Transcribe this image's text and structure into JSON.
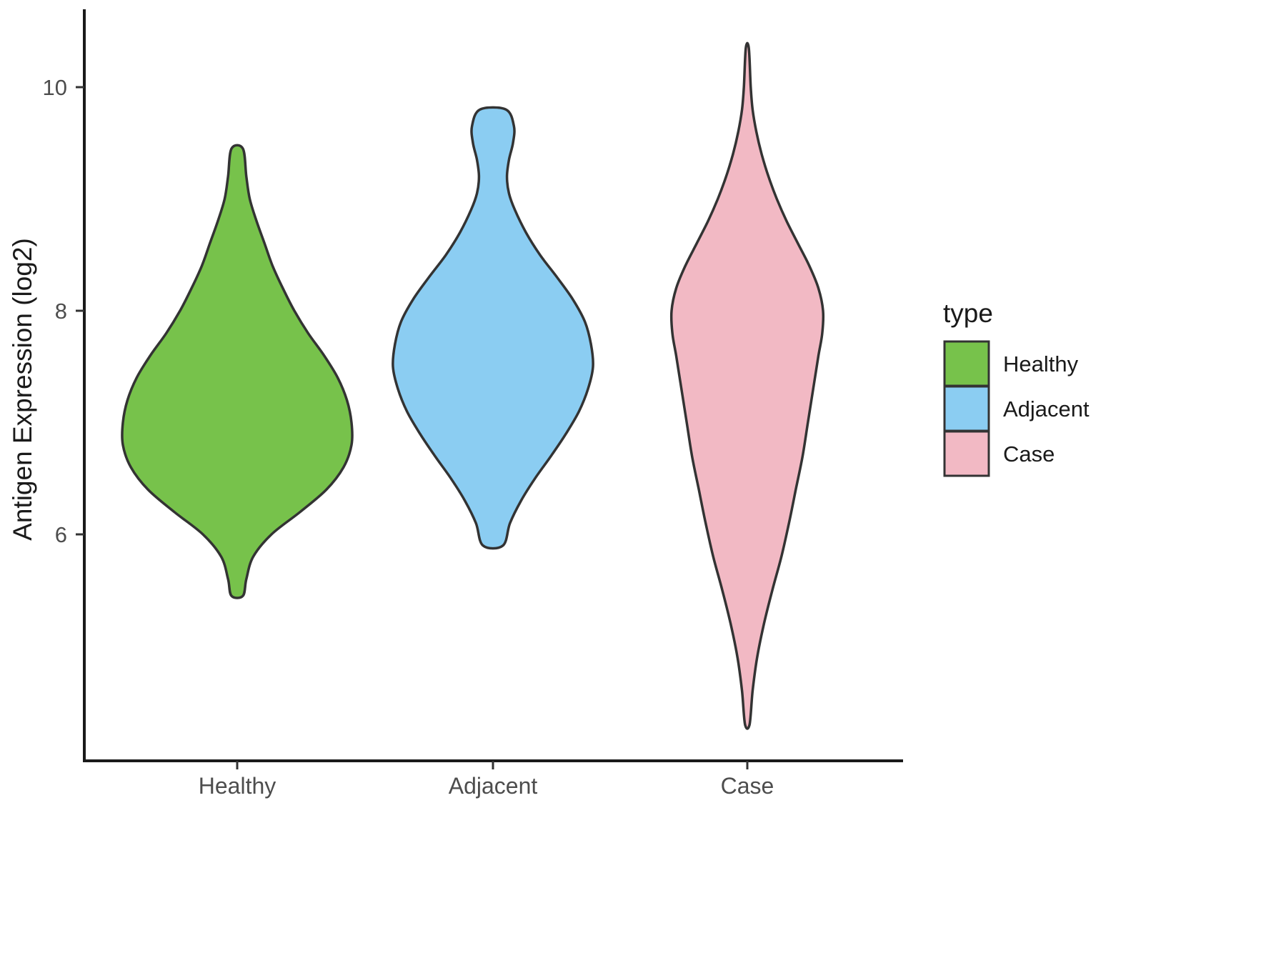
{
  "figure": {
    "background_color": "#ffffff",
    "axis_color": "#1a1a1a",
    "tick_text_color": "#4d4d4d"
  },
  "chart_data": {
    "type": "violin",
    "title": "",
    "xlabel": "",
    "ylabel": "Antigen Expression (log2)",
    "categories": [
      "Healthy",
      "Adjacent",
      "Case"
    ],
    "y_ticks": [
      6,
      8,
      10
    ],
    "ylim": [
      3.97,
      10.68
    ],
    "grid": "off",
    "outline_color": "#333333",
    "legend": {
      "title": "type",
      "position": "right",
      "entries": [
        {
          "label": "Healthy",
          "color": "#77C24B"
        },
        {
          "label": "Adjacent",
          "color": "#8BCDF2"
        },
        {
          "label": "Case",
          "color": "#F2B9C4"
        }
      ]
    },
    "series": [
      {
        "name": "Healthy",
        "color": "#77C24B",
        "min": 5.45,
        "max": 9.45,
        "peak_value": 7.0,
        "density_profile": [
          [
            5.45,
            0.05
          ],
          [
            5.6,
            0.08
          ],
          [
            5.8,
            0.14
          ],
          [
            6.0,
            0.3
          ],
          [
            6.2,
            0.55
          ],
          [
            6.4,
            0.78
          ],
          [
            6.6,
            0.93
          ],
          [
            6.8,
            1.0
          ],
          [
            7.0,
            1.0
          ],
          [
            7.2,
            0.96
          ],
          [
            7.4,
            0.88
          ],
          [
            7.6,
            0.76
          ],
          [
            7.8,
            0.62
          ],
          [
            8.0,
            0.5
          ],
          [
            8.2,
            0.4
          ],
          [
            8.4,
            0.31
          ],
          [
            8.6,
            0.24
          ],
          [
            8.8,
            0.17
          ],
          [
            9.0,
            0.11
          ],
          [
            9.2,
            0.08
          ],
          [
            9.45,
            0.05
          ]
        ]
      },
      {
        "name": "Adjacent",
        "color": "#8BCDF2",
        "min": 5.9,
        "max": 9.8,
        "peak_value": 7.5,
        "density_profile": [
          [
            5.9,
            0.1
          ],
          [
            6.1,
            0.17
          ],
          [
            6.3,
            0.28
          ],
          [
            6.5,
            0.42
          ],
          [
            6.7,
            0.58
          ],
          [
            6.9,
            0.73
          ],
          [
            7.1,
            0.86
          ],
          [
            7.3,
            0.95
          ],
          [
            7.5,
            1.0
          ],
          [
            7.7,
            0.98
          ],
          [
            7.9,
            0.92
          ],
          [
            8.1,
            0.8
          ],
          [
            8.3,
            0.64
          ],
          [
            8.5,
            0.47
          ],
          [
            8.7,
            0.33
          ],
          [
            8.9,
            0.22
          ],
          [
            9.05,
            0.16
          ],
          [
            9.2,
            0.14
          ],
          [
            9.35,
            0.16
          ],
          [
            9.5,
            0.2
          ],
          [
            9.65,
            0.21
          ],
          [
            9.8,
            0.13
          ]
        ]
      },
      {
        "name": "Case",
        "color": "#F2B9C4",
        "min": 4.3,
        "max": 10.35,
        "peak_value": 8.0,
        "density_profile": [
          [
            4.3,
            0.03
          ],
          [
            4.6,
            0.07
          ],
          [
            4.9,
            0.13
          ],
          [
            5.2,
            0.22
          ],
          [
            5.5,
            0.33
          ],
          [
            5.8,
            0.45
          ],
          [
            6.1,
            0.55
          ],
          [
            6.4,
            0.64
          ],
          [
            6.7,
            0.73
          ],
          [
            7.0,
            0.8
          ],
          [
            7.3,
            0.87
          ],
          [
            7.6,
            0.94
          ],
          [
            7.8,
            0.99
          ],
          [
            8.0,
            1.0
          ],
          [
            8.2,
            0.94
          ],
          [
            8.4,
            0.82
          ],
          [
            8.6,
            0.67
          ],
          [
            8.8,
            0.52
          ],
          [
            9.0,
            0.39
          ],
          [
            9.2,
            0.28
          ],
          [
            9.4,
            0.19
          ],
          [
            9.6,
            0.12
          ],
          [
            9.8,
            0.07
          ],
          [
            10.0,
            0.045
          ],
          [
            10.35,
            0.02
          ]
        ]
      }
    ]
  }
}
